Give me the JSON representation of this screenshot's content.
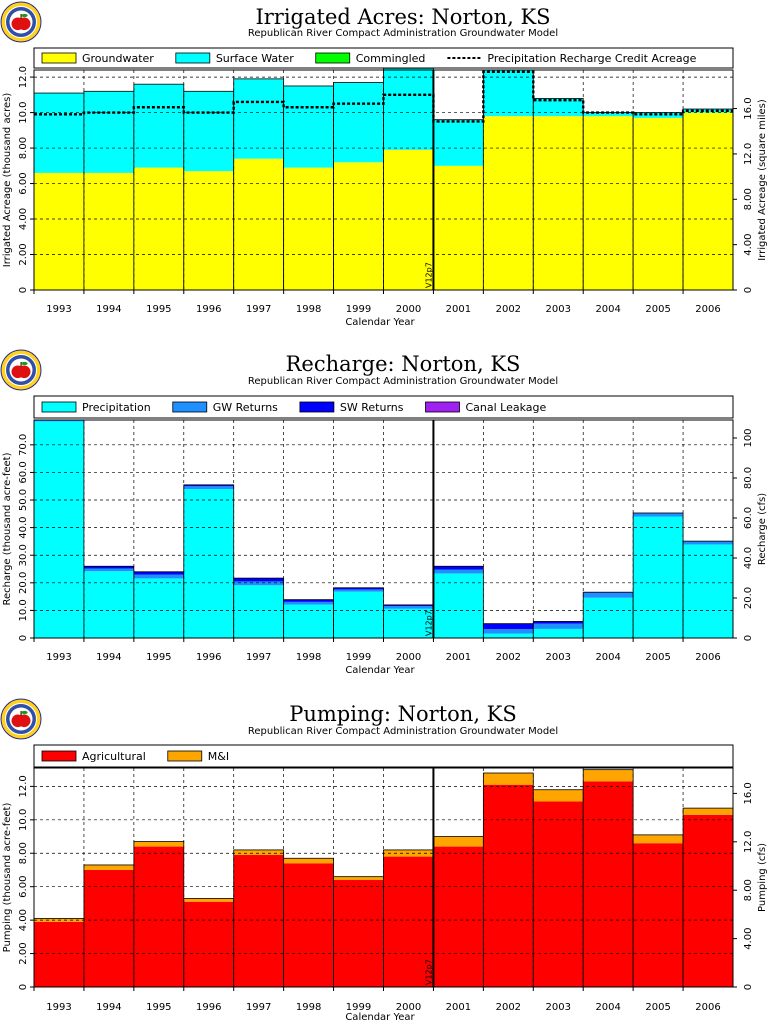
{
  "logo": {
    "icon": "apple-seal-icon"
  },
  "chart_data": [
    {
      "type": "bar",
      "stacked": true,
      "title": "Irrigated Acres: Norton, KS",
      "subtitle": "Republican River Compact Administration Groundwater Model",
      "xlabel": "Calendar Year",
      "ylabel": "Irrigated Acreage (thousand acres)",
      "ylabel_right": "Irrigated Acreage (square miles)",
      "categories": [
        "1993",
        "1994",
        "1995",
        "1996",
        "1997",
        "1998",
        "1999",
        "2000",
        "2001",
        "2002",
        "2003",
        "2004",
        "2005",
        "2006"
      ],
      "ylim": [
        0,
        12.4
      ],
      "yticks": [
        0,
        2,
        4,
        6,
        8,
        10,
        12
      ],
      "ytick_labels": [
        "0",
        "2.00",
        "4.00",
        "6.00",
        "8.00",
        "10.0",
        "12.0"
      ],
      "y2lim": [
        0,
        19.4
      ],
      "y2ticks": [
        0,
        4,
        8,
        12,
        16
      ],
      "y2tick_labels": [
        "0",
        "4.00",
        "8.00",
        "12.0",
        "16.0"
      ],
      "grid": true,
      "legend_position": "top",
      "series": [
        {
          "name": "Groundwater",
          "color": "#ffff00",
          "values": [
            6.6,
            6.6,
            6.9,
            6.7,
            7.4,
            6.9,
            7.2,
            7.9,
            7.0,
            9.8,
            9.8,
            9.8,
            9.7,
            10.0
          ]
        },
        {
          "name": "Surface Water",
          "color": "#00ffff",
          "values": [
            4.5,
            4.6,
            4.7,
            4.5,
            4.5,
            4.6,
            4.5,
            4.6,
            2.6,
            2.6,
            1.0,
            0.2,
            0.3,
            0.2
          ]
        },
        {
          "name": "Commingled",
          "color": "#00ff00",
          "values": [
            0,
            0,
            0,
            0,
            0,
            0,
            0,
            0,
            0,
            0,
            0,
            0,
            0,
            0
          ]
        }
      ],
      "line_series": {
        "name": "Precipitation Recharge Credit Acreage",
        "style": "dotted",
        "values": [
          9.9,
          10.0,
          10.3,
          10.0,
          10.6,
          10.3,
          10.5,
          11.0,
          9.5,
          12.3,
          10.7,
          10.0,
          9.9,
          10.1
        ]
      },
      "marker_index": 8,
      "marker_label": "V12p7"
    },
    {
      "type": "bar",
      "stacked": true,
      "title": "Recharge: Norton, KS",
      "subtitle": "Republican River Compact Administration Groundwater Model",
      "xlabel": "Calendar Year",
      "ylabel": "Recharge (thousand acre-feet)",
      "ylabel_right": "Recharge (cfs)",
      "categories": [
        "1993",
        "1994",
        "1995",
        "1996",
        "1997",
        "1998",
        "1999",
        "2000",
        "2001",
        "2002",
        "2003",
        "2004",
        "2005",
        "2006"
      ],
      "ylim": [
        0,
        79
      ],
      "yticks": [
        0,
        10,
        20,
        30,
        40,
        50,
        60,
        70
      ],
      "ytick_labels": [
        "0",
        "10.0",
        "20.0",
        "30.0",
        "40.0",
        "50.0",
        "60.0",
        "70.0"
      ],
      "y2lim": [
        0,
        109
      ],
      "y2ticks": [
        0,
        20,
        40,
        60,
        80,
        100
      ],
      "y2tick_labels": [
        "0",
        "20.0",
        "40.0",
        "60.0",
        "80.0",
        "100"
      ],
      "grid": true,
      "legend_position": "top",
      "series": [
        {
          "name": "Precipitation",
          "color": "#00ffff",
          "values": [
            78.5,
            24.2,
            21.6,
            54.0,
            19.1,
            12.1,
            16.8,
            10.6,
            23.4,
            1.6,
            3.3,
            14.6,
            44.0,
            33.9
          ]
        },
        {
          "name": "GW Returns",
          "color": "#1e90ff",
          "values": [
            0.5,
            1.0,
            1.4,
            1.0,
            1.4,
            1.0,
            0.8,
            1.0,
            1.4,
            1.6,
            1.9,
            1.8,
            1.2,
            1.1
          ]
        },
        {
          "name": "SW Returns",
          "color": "#0000ff",
          "values": [
            0,
            0.8,
            1.0,
            0.5,
            1.2,
            0.8,
            0.6,
            0.4,
            1.2,
            2.0,
            0.8,
            0.2,
            0.1,
            0.1
          ]
        },
        {
          "name": "Canal Leakage",
          "color": "#a020f0",
          "values": [
            0,
            0,
            0,
            0,
            0,
            0,
            0,
            0,
            0,
            0,
            0,
            0,
            0,
            0
          ]
        }
      ],
      "marker_index": 8,
      "marker_label": "V12p7"
    },
    {
      "type": "bar",
      "stacked": true,
      "title": "Pumping: Norton, KS",
      "subtitle": "Republican River Compact Administration Groundwater Model",
      "xlabel": "Calendar Year",
      "ylabel": "Pumping (thousand acre-feet)",
      "ylabel_right": "Pumping (cfs)",
      "categories": [
        "1993",
        "1994",
        "1995",
        "1996",
        "1997",
        "1998",
        "1999",
        "2000",
        "2001",
        "2002",
        "2003",
        "2004",
        "2005",
        "2006"
      ],
      "ylim": [
        0,
        13.1
      ],
      "yticks": [
        0,
        2,
        4,
        6,
        8,
        10,
        12
      ],
      "ytick_labels": [
        "0",
        "2.00",
        "4.00",
        "6.00",
        "8.00",
        "10.0",
        "12.0"
      ],
      "y2lim": [
        0,
        18.1
      ],
      "y2ticks": [
        0,
        4,
        8,
        12,
        16
      ],
      "y2tick_labels": [
        "0",
        "4.00",
        "8.00",
        "12.0",
        "16.0"
      ],
      "grid": true,
      "legend_position": "top",
      "series": [
        {
          "name": "Agricultural",
          "color": "#ff0000",
          "values": [
            3.9,
            7.0,
            8.4,
            5.1,
            7.9,
            7.4,
            6.4,
            7.8,
            8.4,
            12.1,
            11.1,
            12.3,
            8.6,
            10.3
          ]
        },
        {
          "name": "M&I",
          "color": "#ffa500",
          "values": [
            0.2,
            0.3,
            0.3,
            0.2,
            0.3,
            0.3,
            0.2,
            0.4,
            0.6,
            0.7,
            0.7,
            0.7,
            0.5,
            0.4
          ]
        }
      ],
      "marker_index": 8,
      "marker_label": "V12p7"
    }
  ]
}
